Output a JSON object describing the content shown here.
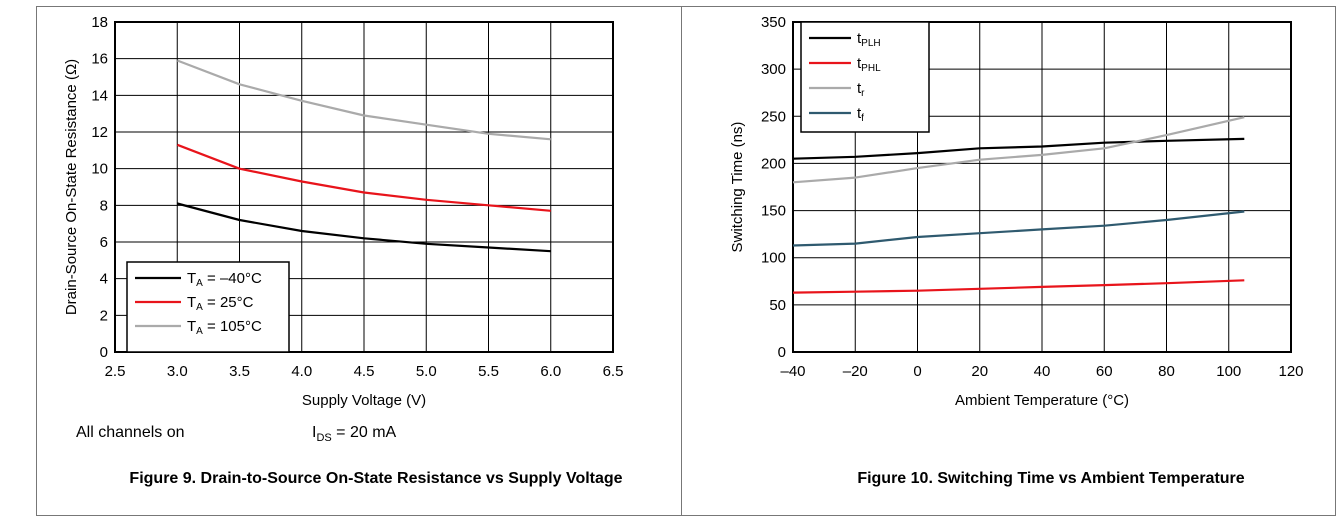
{
  "figures": {
    "fig9_caption": "Figure 9. Drain-to-Source On-State Resistance vs Supply Voltage",
    "fig10_caption": "Figure 10. Switching Time vs Ambient Temperature",
    "note_left": "All channels on",
    "note_right_main": "I",
    "note_right_sub": "DS",
    "note_right_rest": " = 20 mA"
  },
  "chart_data": [
    {
      "type": "line",
      "title": "",
      "xlabel": "Supply Voltage (V)",
      "ylabel": "Drain-Source On-State Resistance (Ω)",
      "xlim": [
        2.5,
        6.5
      ],
      "ylim": [
        0,
        18
      ],
      "xticks": [
        "2.5",
        "3.0",
        "3.5",
        "4.0",
        "4.5",
        "5.0",
        "5.5",
        "6.0",
        "6.5"
      ],
      "yticks": [
        "0",
        "2",
        "4",
        "6",
        "8",
        "10",
        "12",
        "14",
        "16",
        "18"
      ],
      "grid": true,
      "legend_position": "bottom-left",
      "x": [
        3.0,
        3.5,
        4.0,
        4.5,
        5.0,
        5.5,
        6.0
      ],
      "series": [
        {
          "name": "T_A = –40°C",
          "label_main": "T",
          "label_sub": "A",
          "label_rest": " = –40°C",
          "color": "#000000",
          "values": [
            8.1,
            7.2,
            6.6,
            6.2,
            5.9,
            5.7,
            5.5
          ]
        },
        {
          "name": "T_A = 25°C",
          "label_main": "T",
          "label_sub": "A",
          "label_rest": " = 25°C",
          "color": "#e8141b",
          "values": [
            11.3,
            10.0,
            9.3,
            8.7,
            8.3,
            8.0,
            7.7
          ]
        },
        {
          "name": "T_A = 105°C",
          "label_main": "T",
          "label_sub": "A",
          "label_rest": " = 105°C",
          "color": "#aaaaaa",
          "values": [
            15.9,
            14.6,
            13.7,
            12.9,
            12.4,
            11.9,
            11.6
          ]
        }
      ]
    },
    {
      "type": "line",
      "title": "",
      "xlabel": "Ambient Temperature (°C)",
      "ylabel": "Switching Time (ns)",
      "xlim": [
        -40,
        120
      ],
      "ylim": [
        0,
        350
      ],
      "xticks": [
        "–40",
        "–20",
        "0",
        "20",
        "40",
        "60",
        "80",
        "100",
        "120"
      ],
      "yticks": [
        "0",
        "50",
        "100",
        "150",
        "200",
        "250",
        "300",
        "350"
      ],
      "grid": true,
      "legend_position": "top-left",
      "x": [
        -40,
        -20,
        0,
        20,
        40,
        60,
        80,
        105
      ],
      "series": [
        {
          "name": "t_PLH",
          "label_main": "t",
          "label_sub": "PLH",
          "label_rest": "",
          "color": "#000000",
          "values": [
            205,
            207,
            211,
            216,
            218,
            222,
            224,
            226
          ]
        },
        {
          "name": "t_PHL",
          "label_main": "t",
          "label_sub": "PHL",
          "label_rest": "",
          "color": "#e8141b",
          "values": [
            63,
            64,
            65,
            67,
            69,
            71,
            73,
            76
          ]
        },
        {
          "name": "t_r",
          "label_main": "t",
          "label_sub": "r",
          "label_rest": "",
          "color": "#aaaaaa",
          "values": [
            180,
            185,
            195,
            204,
            209,
            216,
            230,
            249
          ]
        },
        {
          "name": "t_f",
          "label_main": "t",
          "label_sub": "f",
          "label_rest": "",
          "color": "#2f5a6f",
          "values": [
            113,
            115,
            122,
            126,
            130,
            134,
            140,
            149
          ]
        }
      ]
    }
  ]
}
